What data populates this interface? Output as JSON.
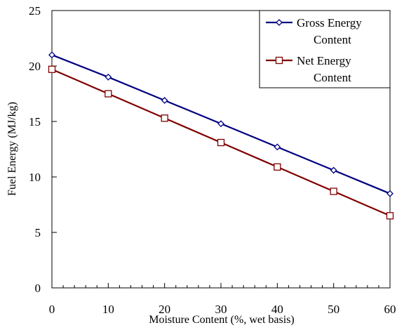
{
  "chart_data": {
    "type": "line",
    "title": "",
    "xlabel": "Moisture Content (%, wet basis)",
    "ylabel": "Fuel Energy (MJ/kg)",
    "xlim": [
      0,
      60
    ],
    "ylim": [
      0,
      25
    ],
    "x": [
      0,
      10,
      20,
      30,
      40,
      50,
      60
    ],
    "x_ticks": [
      "0",
      "10",
      "20",
      "30",
      "40",
      "50",
      "60"
    ],
    "y_ticks": [
      "0",
      "5",
      "10",
      "15",
      "20",
      "25"
    ],
    "grid": false,
    "legend_position": "top-right",
    "series": [
      {
        "name_lines": [
          "Gross Energy",
          "Content"
        ],
        "values": [
          21.0,
          19.0,
          16.9,
          14.8,
          12.7,
          10.6,
          8.5
        ],
        "color": "#000080",
        "marker": "diamond"
      },
      {
        "name_lines": [
          "Net Energy",
          "Content"
        ],
        "values": [
          19.7,
          17.5,
          15.3,
          13.1,
          10.9,
          8.7,
          6.5
        ],
        "color": "#800000",
        "marker": "square"
      }
    ]
  }
}
